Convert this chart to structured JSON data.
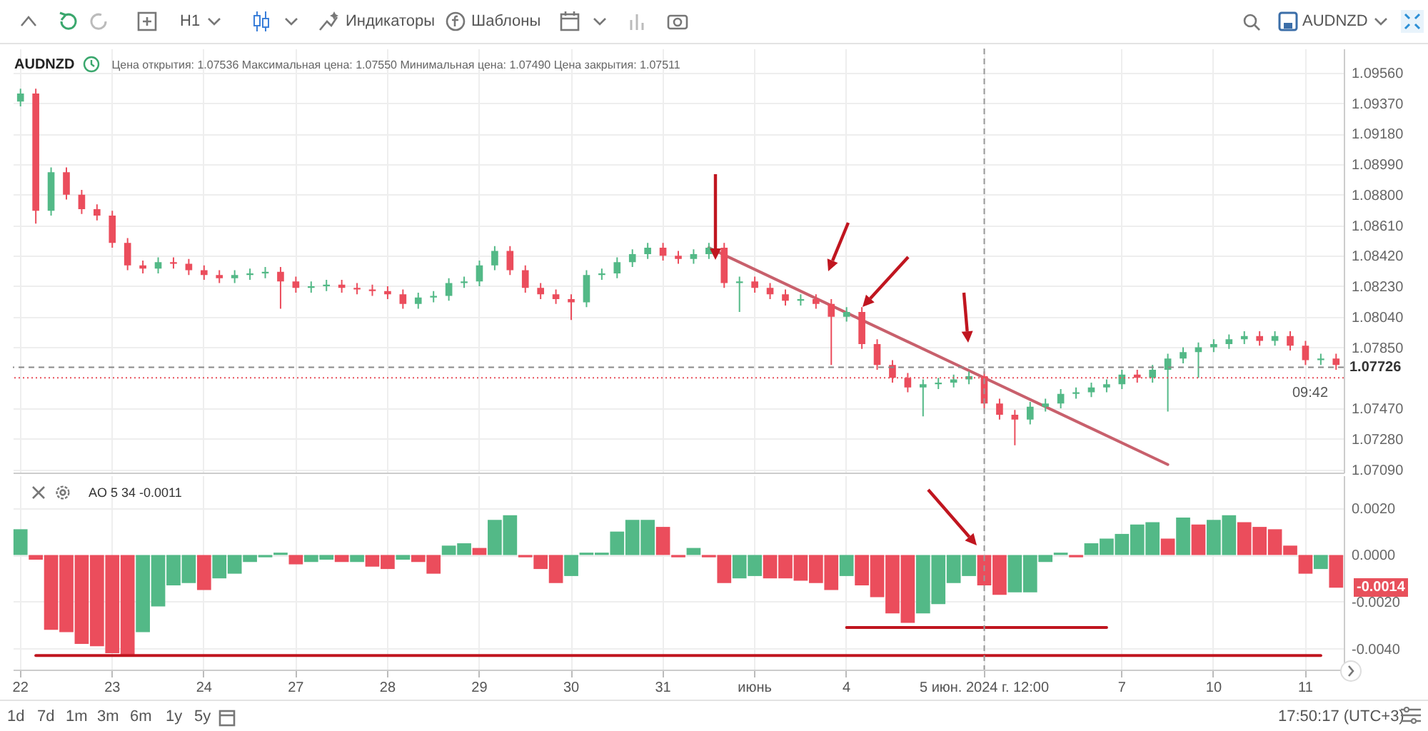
{
  "chart_data": [
    {
      "type": "candlestick",
      "title": "AUDNZD",
      "subtitle": "Цена открытия: 1.07536   Максимальная цена: 1.07550   Минимальная цена: 1.07490   Цена закрытия: 1.07511",
      "categories": [
        "22",
        null,
        null,
        null,
        null,
        null,
        "23",
        null,
        null,
        null,
        null,
        null,
        "24",
        null,
        null,
        null,
        null,
        null,
        "27",
        null,
        null,
        null,
        null,
        null,
        "28",
        null,
        null,
        null,
        null,
        null,
        "29",
        null,
        null,
        null,
        null,
        null,
        "30",
        null,
        null,
        null,
        null,
        null,
        "31",
        null,
        null,
        null,
        null,
        null,
        "июнь",
        null,
        null,
        null,
        null,
        null,
        "4",
        null,
        null,
        null,
        null,
        null,
        null,
        null,
        null,
        "5 июн. 2024 г. 12:00",
        null,
        null,
        null,
        null,
        null,
        null,
        null,
        null,
        "7",
        null,
        null,
        null,
        null,
        null,
        "10",
        null,
        null,
        null,
        null,
        null,
        "11",
        null,
        null
      ],
      "ohlc": [
        [
          1.0938,
          1.0946,
          1.0935,
          1.0943
        ],
        [
          1.0943,
          1.0946,
          1.0862,
          1.087
        ],
        [
          1.087,
          1.0897,
          1.0867,
          1.0894
        ],
        [
          1.0894,
          1.0897,
          1.0877,
          1.088
        ],
        [
          1.088,
          1.0883,
          1.0868,
          1.0871
        ],
        [
          1.0871,
          1.0874,
          1.0864,
          1.0867
        ],
        [
          1.0867,
          1.087,
          1.0847,
          1.085
        ],
        [
          1.085,
          1.0853,
          1.0833,
          1.0836
        ],
        [
          1.0836,
          1.0839,
          1.0831,
          1.0834
        ],
        [
          1.0834,
          1.0841,
          1.0831,
          1.0838
        ],
        [
          1.0838,
          1.0841,
          1.0834,
          1.0837
        ],
        [
          1.0837,
          1.084,
          1.083,
          1.0833
        ],
        [
          1.0833,
          1.0836,
          1.0827,
          1.083
        ],
        [
          1.083,
          1.0833,
          1.0825,
          1.0828
        ],
        [
          1.0828,
          1.0833,
          1.0825,
          1.083
        ],
        [
          1.083,
          1.0834,
          1.0827,
          1.0831
        ],
        [
          1.0831,
          1.0835,
          1.0828,
          1.0832
        ],
        [
          1.0832,
          1.0835,
          1.0809,
          1.0826
        ],
        [
          1.0826,
          1.0829,
          1.0819,
          1.0822
        ],
        [
          1.0822,
          1.0826,
          1.0819,
          1.0823
        ],
        [
          1.0823,
          1.0827,
          1.082,
          1.0824
        ],
        [
          1.0824,
          1.0827,
          1.0819,
          1.0822
        ],
        [
          1.0822,
          1.0825,
          1.0818,
          1.0821
        ],
        [
          1.0821,
          1.0824,
          1.0817,
          1.082
        ],
        [
          1.082,
          1.0823,
          1.0815,
          1.0818
        ],
        [
          1.0818,
          1.0821,
          1.0809,
          1.0812
        ],
        [
          1.0812,
          1.0819,
          1.0809,
          1.0816
        ],
        [
          1.0816,
          1.082,
          1.0813,
          1.0817
        ],
        [
          1.0817,
          1.0828,
          1.0814,
          1.0825
        ],
        [
          1.0825,
          1.0829,
          1.0822,
          1.0826
        ],
        [
          1.0826,
          1.0839,
          1.0823,
          1.0836
        ],
        [
          1.0836,
          1.0848,
          1.0833,
          1.0845
        ],
        [
          1.0845,
          1.0848,
          1.083,
          1.0833
        ],
        [
          1.0833,
          1.0836,
          1.0819,
          1.0822
        ],
        [
          1.0822,
          1.0825,
          1.0815,
          1.0818
        ],
        [
          1.0818,
          1.0821,
          1.0812,
          1.0815
        ],
        [
          1.0815,
          1.0818,
          1.0802,
          1.0813
        ],
        [
          1.0813,
          1.0833,
          1.081,
          1.083
        ],
        [
          1.083,
          1.0834,
          1.0827,
          1.0831
        ],
        [
          1.0831,
          1.0841,
          1.0828,
          1.0838
        ],
        [
          1.0838,
          1.0846,
          1.0835,
          1.0843
        ],
        [
          1.0843,
          1.085,
          1.084,
          1.0847
        ],
        [
          1.0847,
          1.085,
          1.0839,
          1.0842
        ],
        [
          1.0842,
          1.0845,
          1.0837,
          1.084
        ],
        [
          1.084,
          1.0846,
          1.0837,
          1.0843
        ],
        [
          1.0843,
          1.085,
          1.084,
          1.0847
        ],
        [
          1.0847,
          1.085,
          1.0822,
          1.0825
        ],
        [
          1.0825,
          1.0829,
          1.0807,
          1.0826
        ],
        [
          1.0826,
          1.0829,
          1.0819,
          1.0822
        ],
        [
          1.0822,
          1.0825,
          1.0815,
          1.0818
        ],
        [
          1.0818,
          1.0821,
          1.0811,
          1.0814
        ],
        [
          1.0814,
          1.0818,
          1.0811,
          1.0815
        ],
        [
          1.0815,
          1.0818,
          1.0809,
          1.0812
        ],
        [
          1.0812,
          1.0815,
          1.0774,
          1.0804
        ],
        [
          1.0804,
          1.081,
          1.0801,
          1.0807
        ],
        [
          1.0807,
          1.081,
          1.0784,
          1.0787
        ],
        [
          1.0787,
          1.079,
          1.0771,
          1.0774
        ],
        [
          1.0774,
          1.0777,
          1.0763,
          1.0766
        ],
        [
          1.0766,
          1.0769,
          1.0757,
          1.076
        ],
        [
          1.076,
          1.0765,
          1.0742,
          1.0762
        ],
        [
          1.0762,
          1.0766,
          1.0759,
          1.0763
        ],
        [
          1.0763,
          1.0768,
          1.076,
          1.0765
        ],
        [
          1.0765,
          1.077,
          1.0762,
          1.0767
        ],
        [
          1.0767,
          1.077,
          1.0747,
          1.075
        ],
        [
          1.075,
          1.0753,
          1.074,
          1.0743
        ],
        [
          1.0743,
          1.0746,
          1.0724,
          1.074
        ],
        [
          1.074,
          1.0751,
          1.0737,
          1.0748
        ],
        [
          1.0748,
          1.0753,
          1.0745,
          1.075
        ],
        [
          1.075,
          1.0759,
          1.0747,
          1.0756
        ],
        [
          1.0756,
          1.076,
          1.0753,
          1.0757
        ],
        [
          1.0757,
          1.0763,
          1.0754,
          1.076
        ],
        [
          1.076,
          1.0765,
          1.0757,
          1.0762
        ],
        [
          1.0762,
          1.0771,
          1.0759,
          1.0768
        ],
        [
          1.0768,
          1.0771,
          1.0763,
          1.0766
        ],
        [
          1.0766,
          1.0774,
          1.0763,
          1.0771
        ],
        [
          1.0771,
          1.0781,
          1.0745,
          1.0778
        ],
        [
          1.0778,
          1.0785,
          1.0775,
          1.0782
        ],
        [
          1.0782,
          1.0788,
          1.0766,
          1.0785
        ],
        [
          1.0785,
          1.079,
          1.0782,
          1.0787
        ],
        [
          1.0787,
          1.0793,
          1.0784,
          1.079
        ],
        [
          1.079,
          1.0795,
          1.0787,
          1.0792
        ],
        [
          1.0792,
          1.0795,
          1.0786,
          1.0789
        ],
        [
          1.0789,
          1.0795,
          1.0786,
          1.0792
        ],
        [
          1.0792,
          1.0795,
          1.0783,
          1.0786
        ],
        [
          1.0786,
          1.0789,
          1.0774,
          1.0777
        ],
        [
          1.0777,
          1.0781,
          1.0774,
          1.0778
        ],
        [
          1.0778,
          1.0781,
          1.0771,
          1.0774
        ]
      ],
      "colors": [
        "#53b987",
        "#eb4d5c",
        "#53b987",
        "#eb4d5c",
        "#eb4d5c",
        "#eb4d5c",
        "#eb4d5c",
        "#eb4d5c",
        "#eb4d5c",
        "#53b987",
        "#eb4d5c",
        "#eb4d5c",
        "#eb4d5c",
        "#eb4d5c",
        "#53b987",
        "#53b987",
        "#53b987",
        "#eb4d5c",
        "#eb4d5c",
        "#53b987",
        "#53b987",
        "#eb4d5c",
        "#eb4d5c",
        "#eb4d5c",
        "#eb4d5c",
        "#eb4d5c",
        "#53b987",
        "#53b987",
        "#53b987",
        "#53b987",
        "#53b987",
        "#53b987",
        "#eb4d5c",
        "#eb4d5c",
        "#eb4d5c",
        "#eb4d5c",
        "#eb4d5c",
        "#53b987",
        "#53b987",
        "#53b987",
        "#53b987",
        "#53b987",
        "#eb4d5c",
        "#eb4d5c",
        "#53b987",
        "#53b987",
        "#eb4d5c",
        "#53b987",
        "#eb4d5c",
        "#eb4d5c",
        "#eb4d5c",
        "#53b987",
        "#eb4d5c",
        "#eb4d5c",
        "#53b987",
        "#eb4d5c",
        "#eb4d5c",
        "#eb4d5c",
        "#eb4d5c",
        "#53b987",
        "#53b987",
        "#53b987",
        "#53b987",
        "#eb4d5c",
        "#eb4d5c",
        "#eb4d5c",
        "#53b987",
        "#53b987",
        "#53b987",
        "#53b987",
        "#53b987",
        "#53b987",
        "#53b987",
        "#eb4d5c",
        "#53b987",
        "#53b987",
        "#53b987",
        "#53b987",
        "#53b987",
        "#53b987",
        "#53b987",
        "#eb4d5c",
        "#53b987",
        "#eb4d5c",
        "#eb4d5c",
        "#53b987",
        "#eb4d5c"
      ],
      "series": [
        {
          "type": "line",
          "color": "#c8606c",
          "values": [
            null,
            null,
            null,
            null,
            null,
            null,
            null,
            null,
            null,
            null,
            null,
            null,
            null,
            null,
            null,
            null,
            null,
            null,
            null,
            null,
            null,
            null,
            null,
            null,
            null,
            null,
            null,
            null,
            null,
            null,
            null,
            null,
            null,
            null,
            null,
            null,
            null,
            null,
            null,
            null,
            null,
            null,
            null,
            null,
            null,
            1.0847,
            null,
            null,
            null,
            null,
            null,
            null,
            null,
            null,
            null,
            null,
            null,
            null,
            null,
            null,
            null,
            null,
            null,
            null,
            null,
            null,
            null,
            null,
            null,
            null,
            null,
            null,
            null,
            null,
            null,
            1.0712,
            null,
            null,
            null,
            null,
            null,
            null,
            null,
            null,
            null,
            null,
            null
          ]
        }
      ],
      "ylim": [
        1.0707,
        1.0971
      ],
      "yticks": [
        {
          "value": 1.0709,
          "label": "1.07090"
        },
        {
          "value": 1.0728,
          "label": "1.07280"
        },
        {
          "value": 1.0747,
          "label": "1.07470"
        },
        {
          "value": 1.0785,
          "label": "1.07850"
        },
        {
          "value": 1.0804,
          "label": "1.08040"
        },
        {
          "value": 1.0823,
          "label": "1.08230"
        },
        {
          "value": 1.0842,
          "label": "1.08420"
        },
        {
          "value": 1.0861,
          "label": "1.08610"
        },
        {
          "value": 1.088,
          "label": "1.08800"
        },
        {
          "value": 1.0899,
          "label": "1.08990"
        },
        {
          "value": 1.0918,
          "label": "1.09180"
        },
        {
          "value": 1.0937,
          "label": "1.09370"
        },
        {
          "value": 1.0956,
          "label": "1.09560"
        }
      ],
      "ref_lines": [
        {
          "axis": "x",
          "value": "5 июн. 2024 г. 12:00",
          "color": "#999999",
          "line_style": "dashed"
        },
        {
          "axis": "y",
          "value": 1.07726,
          "label": "1.07726",
          "color": "#888888",
          "line_style": "dashed"
        },
        {
          "axis": "y",
          "value": 1.0766,
          "color": "#e8505b",
          "line_style": "dotted"
        }
      ],
      "annotations": [
        "H1",
        "Индикаторы",
        "Шаблоны",
        "AUDNZD",
        "09:42",
        "1d",
        "7d",
        "1m",
        "3m",
        "6m",
        "1y",
        "5y",
        "17:50:17 (UTC+3)"
      ],
      "grid": true,
      "tick_labels": "y"
    },
    {
      "type": "bar",
      "title": "AO 5 34 -0.0011",
      "categories": [
        "22",
        null,
        null,
        null,
        null,
        null,
        "23",
        null,
        null,
        null,
        null,
        null,
        "24",
        null,
        null,
        null,
        null,
        null,
        "27",
        null,
        null,
        null,
        null,
        null,
        "28",
        null,
        null,
        null,
        null,
        null,
        "29",
        null,
        null,
        null,
        null,
        null,
        "30",
        null,
        null,
        null,
        null,
        null,
        "31",
        null,
        null,
        null,
        null,
        null,
        "июнь",
        null,
        null,
        null,
        null,
        null,
        "4",
        null,
        null,
        null,
        null,
        null,
        null,
        null,
        null,
        "5 июн. 2024 г. 12:00",
        null,
        null,
        null,
        null,
        null,
        null,
        null,
        null,
        "7",
        null,
        null,
        null,
        null,
        null,
        "10",
        null,
        null,
        null,
        null,
        null,
        "11",
        null,
        null
      ],
      "series": [
        {
          "type": "bar",
          "values": [
            0.0011,
            -0.0002,
            -0.0032,
            -0.0033,
            -0.0038,
            -0.0039,
            -0.0042,
            -0.0043,
            -0.0033,
            -0.0022,
            -0.0013,
            -0.0012,
            -0.0015,
            -0.001,
            -0.0008,
            -0.0003,
            -0.0001,
            0.0001,
            -0.0004,
            -0.0003,
            -0.0002,
            -0.0003,
            -0.0003,
            -0.0005,
            -0.0006,
            -0.0002,
            -0.0003,
            -0.0008,
            0.0004,
            0.0005,
            0.0003,
            0.0015,
            0.0017,
            -0.0001,
            -0.0006,
            -0.0012,
            -0.0009,
            0.0001,
            0.0001,
            0.001,
            0.0015,
            0.0015,
            0.0012,
            -0.0001,
            0.0003,
            -0.0001,
            -0.0012,
            -0.001,
            -0.0009,
            -0.001,
            -0.001,
            -0.0011,
            -0.0012,
            -0.0015,
            -0.0009,
            -0.0013,
            -0.0018,
            -0.0025,
            -0.0029,
            -0.0025,
            -0.0021,
            -0.0012,
            -0.0009,
            -0.0013,
            -0.0017,
            -0.0016,
            -0.0016,
            -0.0003,
            0.0001,
            -0.0001,
            0.0005,
            0.0007,
            0.0009,
            0.0013,
            0.0014,
            0.0007,
            0.0016,
            0.0013,
            0.0015,
            0.0017,
            0.0014,
            0.0012,
            0.0011,
            0.0004,
            -0.0008,
            -0.0006,
            -0.0014
          ],
          "colors": [
            "#53b987",
            "#eb4d5c",
            "#eb4d5c",
            "#eb4d5c",
            "#eb4d5c",
            "#eb4d5c",
            "#eb4d5c",
            "#eb4d5c",
            "#53b987",
            "#53b987",
            "#53b987",
            "#53b987",
            "#eb4d5c",
            "#53b987",
            "#53b987",
            "#53b987",
            "#53b987",
            "#53b987",
            "#eb4d5c",
            "#53b987",
            "#53b987",
            "#eb4d5c",
            "#53b987",
            "#eb4d5c",
            "#eb4d5c",
            "#53b987",
            "#eb4d5c",
            "#eb4d5c",
            "#53b987",
            "#53b987",
            "#eb4d5c",
            "#53b987",
            "#53b987",
            "#eb4d5c",
            "#eb4d5c",
            "#eb4d5c",
            "#53b987",
            "#53b987",
            "#53b987",
            "#53b987",
            "#53b987",
            "#53b987",
            "#eb4d5c",
            "#eb4d5c",
            "#53b987",
            "#eb4d5c",
            "#eb4d5c",
            "#53b987",
            "#53b987",
            "#eb4d5c",
            "#eb4d5c",
            "#eb4d5c",
            "#eb4d5c",
            "#eb4d5c",
            "#53b987",
            "#eb4d5c",
            "#eb4d5c",
            "#eb4d5c",
            "#eb4d5c",
            "#53b987",
            "#53b987",
            "#53b987",
            "#53b987",
            "#eb4d5c",
            "#eb4d5c",
            "#53b987",
            "#53b987",
            "#53b987",
            "#53b987",
            "#eb4d5c",
            "#53b987",
            "#53b987",
            "#53b987",
            "#53b987",
            "#53b987",
            "#eb4d5c",
            "#53b987",
            "#eb4d5c",
            "#53b987",
            "#53b987",
            "#eb4d5c",
            "#eb4d5c",
            "#eb4d5c",
            "#eb4d5c",
            "#eb4d5c",
            "#53b987",
            "#eb4d5c"
          ]
        },
        {
          "type": "line",
          "color": "#c0151f",
          "values": [
            null,
            -0.0043,
            null,
            null,
            null,
            null,
            null,
            null,
            null,
            null,
            null,
            null,
            null,
            null,
            null,
            null,
            null,
            null,
            null,
            null,
            null,
            null,
            null,
            null,
            null,
            null,
            null,
            null,
            null,
            null,
            null,
            null,
            null,
            null,
            null,
            null,
            null,
            null,
            null,
            null,
            null,
            null,
            null,
            null,
            null,
            null,
            null,
            null,
            null,
            null,
            null,
            null,
            null,
            null,
            null,
            null,
            null,
            null,
            null,
            null,
            null,
            null,
            null,
            null,
            null,
            null,
            null,
            null,
            null,
            null,
            null,
            null,
            null,
            null,
            null,
            null,
            null,
            null,
            null,
            null,
            null,
            null,
            null,
            null,
            null,
            -0.0043,
            null
          ]
        },
        {
          "type": "line",
          "color": "#c0151f",
          "values": [
            null,
            null,
            null,
            null,
            null,
            null,
            null,
            null,
            null,
            null,
            null,
            null,
            null,
            null,
            null,
            null,
            null,
            null,
            null,
            null,
            null,
            null,
            null,
            null,
            null,
            null,
            null,
            null,
            null,
            null,
            null,
            null,
            null,
            null,
            null,
            null,
            null,
            null,
            null,
            null,
            null,
            null,
            null,
            null,
            null,
            null,
            null,
            null,
            null,
            null,
            null,
            null,
            null,
            null,
            -0.0031,
            null,
            null,
            null,
            null,
            null,
            null,
            null,
            null,
            null,
            null,
            null,
            null,
            null,
            null,
            null,
            null,
            -0.0031,
            null,
            null,
            null,
            null,
            null,
            null,
            null,
            null,
            null,
            null,
            null,
            null,
            null,
            null,
            null
          ]
        }
      ],
      "ylim": [
        -0.0049,
        0.0034
      ],
      "yticks": [
        {
          "value": -0.004,
          "label": "-0.0040"
        },
        {
          "value": -0.002,
          "label": "-0.0020"
        },
        {
          "value": 0,
          "label": "0.0000"
        },
        {
          "value": 0.002,
          "label": "0.0020"
        }
      ],
      "ref_lines": [
        {
          "axis": "x",
          "value": "5 июн. 2024 г. 12:00",
          "color": "#999999",
          "line_style": "dashed"
        }
      ],
      "annotations": [
        "-0.0014"
      ],
      "grid": true
    }
  ]
}
